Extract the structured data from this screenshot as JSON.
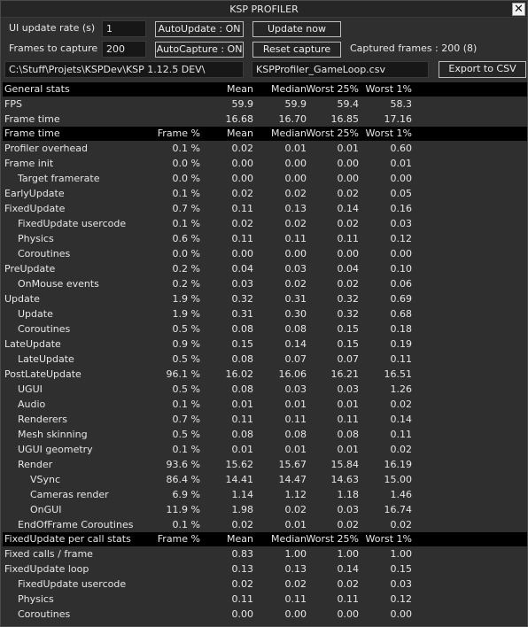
{
  "window": {
    "title": "KSP PROFILER",
    "close_glyph": "✕"
  },
  "controls": {
    "update_rate_label": "UI update rate (s)",
    "update_rate_value": "1",
    "frames_label": "Frames to capture",
    "frames_value": "200",
    "auto_update_button": "AutoUpdate : ON",
    "update_now_button": "Update now",
    "auto_capture_button": "AutoCapture : ON",
    "reset_capture_button": "Reset capture",
    "captured_frames": "Captured frames : 200 (8)",
    "path_value": "C:\\Stuff\\Projets\\KSPDev\\KSP 1.12.5 DEV\\",
    "filename_value": "KSPProfiler_GameLoop.csv",
    "export_button": "Export to CSV"
  },
  "general": {
    "header": {
      "name": "General stats",
      "mean": "Mean",
      "median": "Median",
      "w25": "Worst 25%",
      "w1": "Worst 1%"
    },
    "rows": [
      {
        "name": "FPS",
        "mean": "59.9",
        "median": "59.9",
        "w25": "59.4",
        "w1": "58.3"
      },
      {
        "name": "Frame time",
        "mean": "16.68",
        "median": "16.70",
        "w25": "16.85",
        "w1": "17.16"
      }
    ]
  },
  "frametime": {
    "header": {
      "name": "Frame time",
      "pct": "Frame %",
      "mean": "Mean",
      "median": "Median",
      "w25": "Worst 25%",
      "w1": "Worst 1%"
    },
    "rows": [
      {
        "name": "Profiler overhead",
        "pct": "0.1 %",
        "mean": "0.02",
        "median": "0.01",
        "w25": "0.01",
        "w1": "0.60",
        "lvl": 0
      },
      {
        "name": "Frame init",
        "pct": "0.0 %",
        "mean": "0.00",
        "median": "0.00",
        "w25": "0.00",
        "w1": "0.01",
        "lvl": 0
      },
      {
        "name": "Target framerate",
        "pct": "0.0 %",
        "mean": "0.00",
        "median": "0.00",
        "w25": "0.00",
        "w1": "0.00",
        "lvl": 1
      },
      {
        "name": "EarlyUpdate",
        "pct": "0.1 %",
        "mean": "0.02",
        "median": "0.02",
        "w25": "0.02",
        "w1": "0.05",
        "lvl": 0
      },
      {
        "name": "FixedUpdate",
        "pct": "0.7 %",
        "mean": "0.11",
        "median": "0.13",
        "w25": "0.14",
        "w1": "0.16",
        "lvl": 0
      },
      {
        "name": "FixedUpdate usercode",
        "pct": "0.1 %",
        "mean": "0.02",
        "median": "0.02",
        "w25": "0.02",
        "w1": "0.03",
        "lvl": 1
      },
      {
        "name": "Physics",
        "pct": "0.6 %",
        "mean": "0.11",
        "median": "0.11",
        "w25": "0.11",
        "w1": "0.12",
        "lvl": 1
      },
      {
        "name": "Coroutines",
        "pct": "0.0 %",
        "mean": "0.00",
        "median": "0.00",
        "w25": "0.00",
        "w1": "0.00",
        "lvl": 1
      },
      {
        "name": "PreUpdate",
        "pct": "0.2 %",
        "mean": "0.04",
        "median": "0.03",
        "w25": "0.04",
        "w1": "0.10",
        "lvl": 0
      },
      {
        "name": "OnMouse events",
        "pct": "0.2 %",
        "mean": "0.03",
        "median": "0.02",
        "w25": "0.02",
        "w1": "0.06",
        "lvl": 1
      },
      {
        "name": "Update",
        "pct": "1.9 %",
        "mean": "0.32",
        "median": "0.31",
        "w25": "0.32",
        "w1": "0.69",
        "lvl": 0
      },
      {
        "name": "Update",
        "pct": "1.9 %",
        "mean": "0.31",
        "median": "0.30",
        "w25": "0.32",
        "w1": "0.68",
        "lvl": 1
      },
      {
        "name": "Coroutines",
        "pct": "0.5 %",
        "mean": "0.08",
        "median": "0.08",
        "w25": "0.15",
        "w1": "0.18",
        "lvl": 1
      },
      {
        "name": "LateUpdate",
        "pct": "0.9 %",
        "mean": "0.15",
        "median": "0.14",
        "w25": "0.15",
        "w1": "0.19",
        "lvl": 0
      },
      {
        "name": "LateUpdate",
        "pct": "0.5 %",
        "mean": "0.08",
        "median": "0.07",
        "w25": "0.07",
        "w1": "0.11",
        "lvl": 1
      },
      {
        "name": "PostLateUpdate",
        "pct": "96.1 %",
        "mean": "16.02",
        "median": "16.06",
        "w25": "16.21",
        "w1": "16.51",
        "lvl": 0
      },
      {
        "name": "UGUI",
        "pct": "0.5 %",
        "mean": "0.08",
        "median": "0.03",
        "w25": "0.03",
        "w1": "1.26",
        "lvl": 1
      },
      {
        "name": "Audio",
        "pct": "0.1 %",
        "mean": "0.01",
        "median": "0.01",
        "w25": "0.01",
        "w1": "0.02",
        "lvl": 1
      },
      {
        "name": "Renderers",
        "pct": "0.7 %",
        "mean": "0.11",
        "median": "0.11",
        "w25": "0.11",
        "w1": "0.14",
        "lvl": 1
      },
      {
        "name": "Mesh skinning",
        "pct": "0.5 %",
        "mean": "0.08",
        "median": "0.08",
        "w25": "0.08",
        "w1": "0.11",
        "lvl": 1
      },
      {
        "name": "UGUI geometry",
        "pct": "0.1 %",
        "mean": "0.01",
        "median": "0.01",
        "w25": "0.01",
        "w1": "0.02",
        "lvl": 1
      },
      {
        "name": "Render",
        "pct": "93.6 %",
        "mean": "15.62",
        "median": "15.67",
        "w25": "15.84",
        "w1": "16.19",
        "lvl": 1
      },
      {
        "name": "VSync",
        "pct": "86.4 %",
        "mean": "14.41",
        "median": "14.47",
        "w25": "14.63",
        "w1": "15.00",
        "lvl": 2
      },
      {
        "name": "Cameras render",
        "pct": "6.9 %",
        "mean": "1.14",
        "median": "1.12",
        "w25": "1.18",
        "w1": "1.46",
        "lvl": 2
      },
      {
        "name": "OnGUI",
        "pct": "11.9 %",
        "mean": "1.98",
        "median": "0.02",
        "w25": "0.03",
        "w1": "16.74",
        "lvl": 2
      },
      {
        "name": "EndOfFrame Coroutines",
        "pct": "0.1 %",
        "mean": "0.02",
        "median": "0.01",
        "w25": "0.02",
        "w1": "0.02",
        "lvl": 1
      }
    ]
  },
  "fixedcall": {
    "header": {
      "name": "FixedUpdate per call stats",
      "pct": "Frame %",
      "mean": "Mean",
      "median": "Median",
      "w25": "Worst 25%",
      "w1": "Worst 1%"
    },
    "rows": [
      {
        "name": "Fixed calls / frame",
        "pct": "",
        "mean": "0.83",
        "median": "1.00",
        "w25": "1.00",
        "w1": "1.00",
        "lvl": 0
      },
      {
        "name": "FixedUpdate loop",
        "pct": "",
        "mean": "0.13",
        "median": "0.13",
        "w25": "0.14",
        "w1": "0.15",
        "lvl": 0
      },
      {
        "name": "FixedUpdate usercode",
        "pct": "",
        "mean": "0.02",
        "median": "0.02",
        "w25": "0.02",
        "w1": "0.03",
        "lvl": 1
      },
      {
        "name": "Physics",
        "pct": "",
        "mean": "0.11",
        "median": "0.11",
        "w25": "0.11",
        "w1": "0.12",
        "lvl": 1
      },
      {
        "name": "Coroutines",
        "pct": "",
        "mean": "0.00",
        "median": "0.00",
        "w25": "0.00",
        "w1": "0.00",
        "lvl": 1
      }
    ]
  }
}
